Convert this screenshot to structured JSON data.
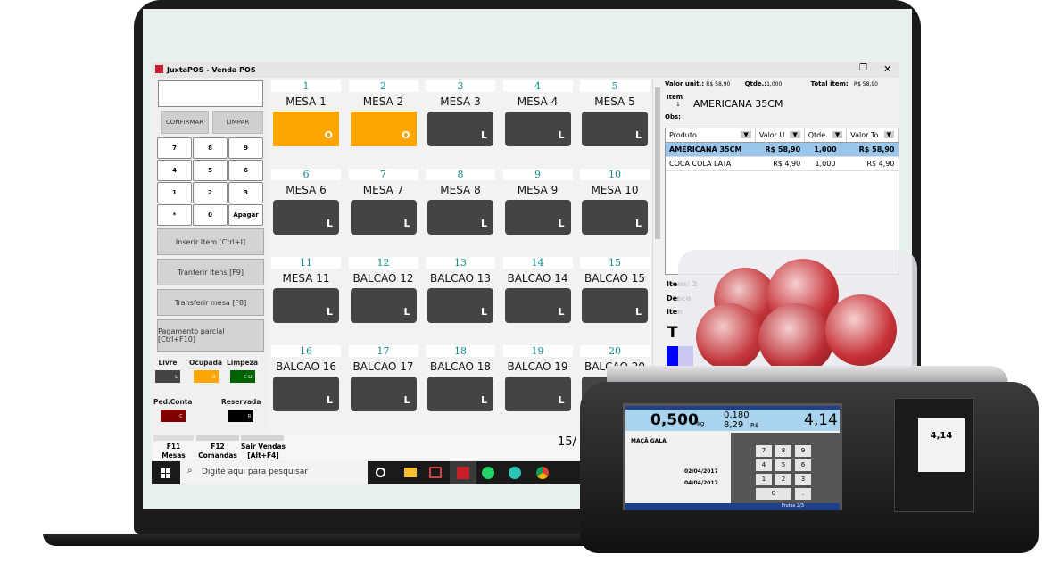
{
  "window": {
    "title": "JuxtaPOS - Venda POS"
  },
  "left": {
    "confirm": "CONFIRMAR",
    "clear": "LIMPAR",
    "keys": [
      "7",
      "8",
      "9",
      "4",
      "5",
      "6",
      "1",
      "2",
      "3",
      "*",
      "0",
      "Apagar"
    ],
    "actions": [
      "Inserir Item [Ctrl+I]",
      "Tranferir itens [F9]",
      "Transferir mesa [F8]",
      "Pagamento parcial [Ctrl+F10]"
    ],
    "legend": [
      {
        "label": "Livre",
        "code": "L",
        "color": "#444444"
      },
      {
        "label": "Ocupada",
        "code": "O",
        "color": "#ffa500"
      },
      {
        "label": "Limpeza",
        "code": "C-LI",
        "color": "#006400"
      },
      {
        "label": "Ped.Conta",
        "code": "C",
        "color": "#800000"
      },
      {
        "label": "Reservada",
        "code": "R",
        "color": "#000000"
      }
    ]
  },
  "tables": [
    {
      "n": "1",
      "name": "MESA 1",
      "status": "O"
    },
    {
      "n": "2",
      "name": "MESA 2",
      "status": "O"
    },
    {
      "n": "3",
      "name": "MESA 3",
      "status": "L"
    },
    {
      "n": "4",
      "name": "MESA 4",
      "status": "L"
    },
    {
      "n": "5",
      "name": "MESA 5",
      "status": "L"
    },
    {
      "n": "6",
      "name": "MESA 6",
      "status": "L"
    },
    {
      "n": "7",
      "name": "MESA 7",
      "status": "L"
    },
    {
      "n": "8",
      "name": "MESA 8",
      "status": "L"
    },
    {
      "n": "9",
      "name": "MESA 9",
      "status": "L"
    },
    {
      "n": "10",
      "name": "MESA 10",
      "status": "L"
    },
    {
      "n": "11",
      "name": "MESA  11",
      "status": "L"
    },
    {
      "n": "12",
      "name": "BALCAO 12",
      "status": "L"
    },
    {
      "n": "13",
      "name": "BALCAO 13",
      "status": "L"
    },
    {
      "n": "14",
      "name": "BALCAO 14",
      "status": "L"
    },
    {
      "n": "15",
      "name": "BALCAO 15",
      "status": "L"
    },
    {
      "n": "16",
      "name": "BALCAO 16",
      "status": "L"
    },
    {
      "n": "17",
      "name": "BALCAO 17",
      "status": "L"
    },
    {
      "n": "18",
      "name": "BALCAO 18",
      "status": "L"
    },
    {
      "n": "19",
      "name": "BALCAO 19",
      "status": "L"
    },
    {
      "n": "20",
      "name": "BALCAO 20",
      "status": "L"
    }
  ],
  "status_colors": {
    "O": "#ffa500",
    "L": "#444444"
  },
  "right": {
    "unit_label": "Valor unit.:",
    "unit_value": "R$ 58,90",
    "qty_label": "Qtde.:",
    "qty_value": "1,000",
    "total_label": "Total item:",
    "total_value": "R$ 58,90",
    "item_label": "Item",
    "item_num": "1",
    "item_name": "AMERICANA 35CM",
    "obs_label": "Obs:",
    "columns": [
      "Produto",
      "Valor U",
      "Qtde.",
      "Valor To"
    ],
    "rows": [
      [
        "AMERICANA 35CM",
        "R$ 58,90",
        "1,000",
        "R$ 58,90"
      ],
      [
        "COCA COLA LATA",
        "R$ 4,90",
        "1,000",
        "R$ 4,90"
      ]
    ],
    "items_label": "Itens:",
    "items_count": "2",
    "desc_label": "Desco",
    "item2_label": "Iten",
    "big_letter": "T"
  },
  "bottom": {
    "f11": "F11",
    "f11_sub": "Mesas",
    "f12": "F12",
    "f12_sub": "Comandas",
    "exit": "Sair Vendas",
    "exit_sub": "[Alt+F4]",
    "date_partial": "15/"
  },
  "taskbar": {
    "search_placeholder": "Digite aqui para pesquisar"
  },
  "scale": {
    "weight": "0,500",
    "weight_unit": "kg",
    "tare": "0,180",
    "price_kg": "8,29",
    "currency": "R$",
    "total": "4,14",
    "product": "MAÇÃ GALA",
    "date1": "02/04/2017",
    "date2": "04/04/2017",
    "keys": [
      "7",
      "8",
      "9",
      "4",
      "5",
      "6",
      "1",
      "2",
      "3",
      "0",
      "."
    ],
    "footer": "Frutas 2/3",
    "label_total": "4,14"
  }
}
